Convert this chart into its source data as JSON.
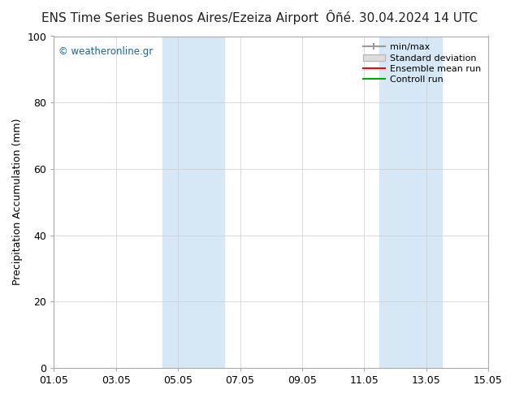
{
  "title_left": "ENS Time Series Buenos Aires/Ezeiza Airport",
  "title_right": "Ôñé. 30.04.2024 14 UTC",
  "ylabel": "Precipitation Accumulation (mm)",
  "xlabel": "",
  "ylim": [
    0,
    100
  ],
  "yticks": [
    0,
    20,
    40,
    60,
    80,
    100
  ],
  "xtick_labels": [
    "01.05",
    "03.05",
    "05.05",
    "07.05",
    "09.05",
    "11.05",
    "13.05",
    "15.05"
  ],
  "xtick_positions": [
    0,
    2,
    4,
    6,
    8,
    10,
    12,
    14
  ],
  "x_total_days": 14,
  "shaded_bands": [
    {
      "x_start": 3.5,
      "x_end": 5.5,
      "color": "#d6e8f5"
    },
    {
      "x_start": 10.5,
      "x_end": 12.5,
      "color": "#d6e8f5"
    }
  ],
  "watermark": "© weatheronline.gr",
  "watermark_color": "#1a6699",
  "legend_items": [
    {
      "label": "min/max",
      "color": "#aaaaaa",
      "lw": 1.5
    },
    {
      "label": "Standard deviation",
      "color": "#cccccc",
      "lw": 6
    },
    {
      "label": "Ensemble mean run",
      "color": "#ff0000",
      "lw": 1.5
    },
    {
      "label": "Controll run",
      "color": "#00aa00",
      "lw": 1.5
    }
  ],
  "background_color": "#ffffff",
  "grid_color": "#cccccc",
  "title_fontsize": 11,
  "axis_label_fontsize": 9,
  "tick_fontsize": 9
}
